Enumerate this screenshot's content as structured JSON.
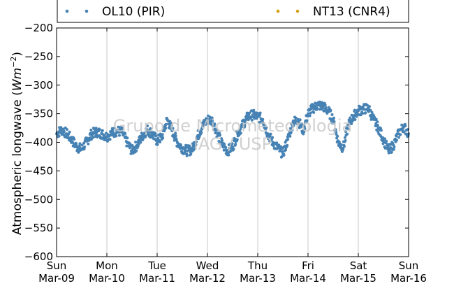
{
  "chart_data": {
    "type": "scatter",
    "ylabel": "Atmospheric longwave",
    "ylabel_unit_base": "Wm",
    "ylabel_unit_exp": "−2",
    "ylim": [
      -600,
      -200
    ],
    "yticks": [
      -200,
      -250,
      -300,
      -350,
      -400,
      -450,
      -500,
      -550,
      -600
    ],
    "ytick_labels": [
      "−200",
      "−250",
      "−300",
      "−350",
      "−400",
      "−450",
      "−500",
      "−550",
      "−600"
    ],
    "xlim": [
      0,
      7
    ],
    "xticks": [
      {
        "day": "Sun",
        "date": "Mar-09"
      },
      {
        "day": "Mon",
        "date": "Mar-10"
      },
      {
        "day": "Tue",
        "date": "Mar-11"
      },
      {
        "day": "Wed",
        "date": "Mar-12"
      },
      {
        "day": "Thu",
        "date": "Mar-13"
      },
      {
        "day": "Fri",
        "date": "Mar-14"
      },
      {
        "day": "Sat",
        "date": "Mar-15"
      },
      {
        "day": "Sun",
        "date": "Mar-16"
      }
    ],
    "grid": "vertical",
    "legend_position": "top",
    "watermark": [
      "Grupo de Micrometeorologia",
      "IAG / USP"
    ],
    "series": [
      {
        "name": "OL10 (PIR)",
        "color": "#4682b4",
        "x": [
          0.0,
          0.1,
          0.2,
          0.3,
          0.4,
          0.5,
          0.6,
          0.7,
          0.8,
          0.9,
          1.0,
          1.1,
          1.2,
          1.3,
          1.4,
          1.5,
          1.6,
          1.7,
          1.8,
          1.9,
          2.0,
          2.1,
          2.2,
          2.3,
          2.4,
          2.5,
          2.6,
          2.7,
          2.8,
          2.9,
          3.0,
          3.1,
          3.2,
          3.3,
          3.4,
          3.5,
          3.6,
          3.7,
          3.8,
          3.9,
          4.0,
          4.1,
          4.2,
          4.3,
          4.4,
          4.5,
          4.6,
          4.7,
          4.8,
          4.9,
          5.0,
          5.1,
          5.2,
          5.3,
          5.4,
          5.5,
          5.6,
          5.7,
          5.8,
          5.9,
          6.0,
          6.1,
          6.2,
          6.3,
          6.4,
          6.5,
          6.6,
          6.7,
          6.8,
          6.9,
          7.0
        ],
        "y": [
          -385,
          -378,
          -385,
          -395,
          -408,
          -412,
          -398,
          -385,
          -382,
          -385,
          -390,
          -384,
          -380,
          -382,
          -400,
          -415,
          -405,
          -390,
          -378,
          -385,
          -398,
          -390,
          -360,
          -380,
          -400,
          -410,
          -415,
          -412,
          -390,
          -372,
          -360,
          -362,
          -385,
          -405,
          -415,
          -408,
          -385,
          -370,
          -355,
          -352,
          -355,
          -360,
          -385,
          -400,
          -410,
          -420,
          -395,
          -365,
          -360,
          -380,
          -350,
          -340,
          -335,
          -337,
          -345,
          -360,
          -400,
          -410,
          -370,
          -355,
          -345,
          -342,
          -340,
          -360,
          -375,
          -395,
          -415,
          -405,
          -385,
          -372,
          -385
        ]
      },
      {
        "name": "NT13 (CNR4)",
        "color": "#d4a010",
        "x": [],
        "y": []
      }
    ]
  }
}
